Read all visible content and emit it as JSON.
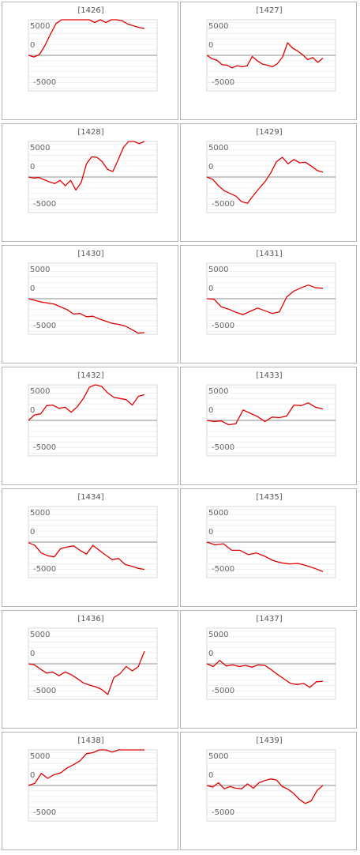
{
  "chart_data": [
    {
      "type": "line",
      "title": "[1426]",
      "yticks": [
        "5000",
        "0",
        "-5000"
      ],
      "ylim": [
        -6500,
        6500
      ],
      "color": "#e00000",
      "values": [
        0,
        -300,
        150,
        1800,
        3900,
        5800,
        6500,
        6500,
        6500,
        6500,
        6500,
        6500,
        6000,
        6500,
        6000,
        6500,
        6500,
        6300,
        5700,
        5400,
        5100,
        4900
      ]
    },
    {
      "type": "line",
      "title": "[1427]",
      "yticks": [
        "5000",
        "0",
        "-5000"
      ],
      "ylim": [
        -6500,
        6500
      ],
      "color": "#e00000",
      "values": [
        0,
        -600,
        -900,
        -1700,
        -1800,
        -2300,
        -1900,
        -2100,
        -1900,
        -200,
        -1000,
        -1600,
        -1800,
        -2100,
        -1500,
        -300,
        2300,
        1300,
        800,
        100,
        -800,
        -400,
        -1300,
        -500
      ]
    },
    {
      "type": "line",
      "title": "[1428]",
      "yticks": [
        "5000",
        "0",
        "-5000"
      ],
      "ylim": [
        -6500,
        6500
      ],
      "color": "#e00000",
      "values": [
        0,
        -200,
        -100,
        -500,
        -900,
        -1200,
        -600,
        -1600,
        -600,
        -2400,
        -1000,
        2400,
        3700,
        3600,
        2800,
        1400,
        1000,
        3100,
        5400,
        6500,
        6500,
        6100,
        6500
      ]
    },
    {
      "type": "line",
      "title": "[1429]",
      "yticks": [
        "5000",
        "0",
        "-5000"
      ],
      "ylim": [
        -6500,
        6500
      ],
      "color": "#e00000",
      "values": [
        0,
        -400,
        -1600,
        -2500,
        -3000,
        -3500,
        -4500,
        -4800,
        -3400,
        -2100,
        -900,
        700,
        2800,
        3600,
        2400,
        3200,
        2600,
        2700,
        2000,
        1200,
        900
      ]
    },
    {
      "type": "line",
      "title": "[1430]",
      "yticks": [
        "5000",
        "0",
        "-5000"
      ],
      "ylim": [
        -6500,
        6500
      ],
      "color": "#e00000",
      "values": [
        0,
        -300,
        -600,
        -800,
        -1000,
        -1500,
        -2000,
        -2800,
        -2700,
        -3300,
        -3200,
        -3700,
        -4100,
        -4500,
        -4700,
        -5000,
        -5600,
        -6300,
        -6200
      ]
    },
    {
      "type": "line",
      "title": "[1431]",
      "yticks": [
        "5000",
        "0",
        "-5000"
      ],
      "ylim": [
        -6500,
        6500
      ],
      "color": "#e00000",
      "values": [
        0,
        -100,
        -1500,
        -1900,
        -2500,
        -2900,
        -2300,
        -1700,
        -2200,
        -2700,
        -2400,
        300,
        1400,
        2000,
        2500,
        2000,
        1900
      ]
    },
    {
      "type": "line",
      "title": "[1432]",
      "yticks": [
        "5000",
        "0",
        "-5000"
      ],
      "ylim": [
        -6500,
        6500
      ],
      "color": "#e00000",
      "values": [
        0,
        1000,
        1200,
        2700,
        2800,
        2200,
        2400,
        1500,
        2500,
        4000,
        6100,
        6500,
        6200,
        5000,
        4200,
        4000,
        3800,
        2800,
        4400,
        4700
      ]
    },
    {
      "type": "line",
      "title": "[1433]",
      "yticks": [
        "5000",
        "0",
        "-5000"
      ],
      "ylim": [
        -6500,
        6500
      ],
      "color": "#e00000",
      "values": [
        0,
        -200,
        -100,
        -800,
        -600,
        1900,
        1300,
        700,
        -200,
        600,
        500,
        800,
        2800,
        2700,
        3200,
        2400,
        2100
      ]
    },
    {
      "type": "line",
      "title": "[1434]",
      "yticks": [
        "5000",
        "0",
        "-5000"
      ],
      "ylim": [
        -6500,
        6500
      ],
      "color": "#e00000",
      "values": [
        -100,
        -600,
        -2000,
        -2500,
        -2700,
        -1200,
        -900,
        -700,
        -1500,
        -2200,
        -600,
        -1500,
        -2400,
        -3200,
        -3000,
        -4100,
        -4400,
        -4800,
        -5000
      ]
    },
    {
      "type": "line",
      "title": "[1435]",
      "yticks": [
        "5000",
        "0",
        "-5000"
      ],
      "ylim": [
        -6500,
        6500
      ],
      "color": "#e00000",
      "values": [
        0,
        -500,
        -300,
        -1500,
        -1500,
        -2300,
        -2000,
        -2600,
        -3400,
        -3800,
        -4000,
        -3900,
        -4300,
        -4800,
        -5400
      ]
    },
    {
      "type": "line",
      "title": "[1436]",
      "yticks": [
        "5000",
        "0",
        "-5000"
      ],
      "ylim": [
        -6500,
        6500
      ],
      "color": "#e00000",
      "values": [
        0,
        -200,
        -1000,
        -1700,
        -1500,
        -2200,
        -1500,
        -2000,
        -2700,
        -3500,
        -3900,
        -4200,
        -4700,
        -5600,
        -2500,
        -1800,
        -500,
        -1300,
        -500,
        2300
      ]
    },
    {
      "type": "line",
      "title": "[1437]",
      "yticks": [
        "5000",
        "0",
        "-5000"
      ],
      "ylim": [
        -6500,
        6500
      ],
      "color": "#e00000",
      "values": [
        0,
        -500,
        600,
        -400,
        -200,
        -500,
        -300,
        -600,
        -200,
        -300,
        -1100,
        -2000,
        -2800,
        -3600,
        -3800,
        -3600,
        -4300,
        -3300,
        -3200
      ]
    },
    {
      "type": "line",
      "title": "[1438]",
      "yticks": [
        "5000",
        "0",
        "-5000"
      ],
      "ylim": [
        -6500,
        6500
      ],
      "color": "#e00000",
      "values": [
        0,
        400,
        2200,
        1300,
        2000,
        2300,
        3200,
        3800,
        4500,
        5800,
        6000,
        6500,
        6500,
        6100,
        6500,
        6500,
        6500,
        6500,
        6500
      ]
    },
    {
      "type": "line",
      "title": "[1439]",
      "yticks": [
        "5000",
        "0",
        "-5000"
      ],
      "ylim": [
        -6500,
        6500
      ],
      "color": "#e00000",
      "values": [
        0,
        -300,
        500,
        -600,
        -200,
        -500,
        -600,
        300,
        -500,
        500,
        900,
        1200,
        1000,
        -200,
        -700,
        -1500,
        -2600,
        -3300,
        -2800,
        -900,
        0
      ]
    }
  ]
}
